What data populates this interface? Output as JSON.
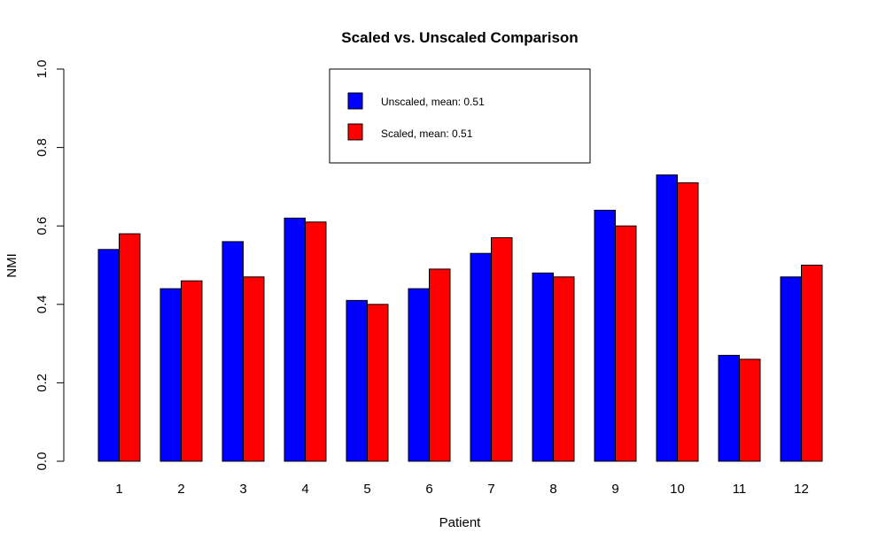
{
  "chart_data": {
    "type": "bar",
    "title": "Scaled vs. Unscaled Comparison",
    "xlabel": "Patient",
    "ylabel": "NMI",
    "ylim": [
      0,
      1
    ],
    "yticks": [
      "0.0",
      "0.2",
      "0.4",
      "0.6",
      "0.8",
      "1.0"
    ],
    "categories": [
      "1",
      "2",
      "3",
      "4",
      "5",
      "6",
      "7",
      "8",
      "9",
      "10",
      "11",
      "12"
    ],
    "series": [
      {
        "name": "Unscaled, mean: 0.51",
        "color": "#0000ff",
        "values": [
          0.54,
          0.44,
          0.56,
          0.62,
          0.41,
          0.44,
          0.53,
          0.48,
          0.64,
          0.73,
          0.27,
          0.47
        ]
      },
      {
        "name": "Scaled, mean: 0.51",
        "color": "#ff0000",
        "values": [
          0.58,
          0.46,
          0.47,
          0.61,
          0.4,
          0.49,
          0.57,
          0.47,
          0.6,
          0.71,
          0.26,
          0.5
        ]
      }
    ],
    "grid": false,
    "legend_position": "top"
  }
}
